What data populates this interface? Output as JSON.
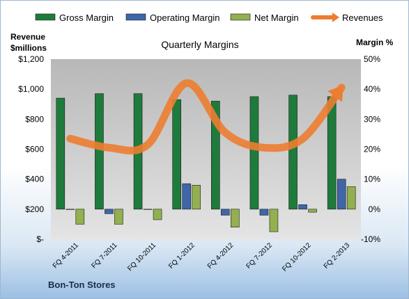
{
  "chart_data": {
    "type": "bar",
    "title": "Quarterly Margins",
    "company": "Bon-Ton Stores",
    "left_axis_title": [
      "Revenue",
      "$millions"
    ],
    "right_axis_title": "Margin %",
    "left_ticks": [
      "$-",
      "$200",
      "$400",
      "$600",
      "$800",
      "$1,000",
      "$1,200"
    ],
    "left_ylim": [
      0,
      1200
    ],
    "right_ticks": [
      "-10%",
      "0%",
      "10%",
      "20%",
      "30%",
      "40%",
      "50%"
    ],
    "right_ylim": [
      -10,
      50
    ],
    "grid": false,
    "legend_position": "top",
    "categories": [
      "FQ 4-2011",
      "FQ 7-2011",
      "FQ 10-2011",
      "FQ 1-2012",
      "FQ 4-2012",
      "FQ 7-2012",
      "FQ 10-2012",
      "FQ 2-2013"
    ],
    "series": [
      {
        "name": "Gross Margin",
        "kind": "bar",
        "axis": "right",
        "color": "#1e7b3c",
        "values": [
          37,
          38.5,
          38.5,
          36.5,
          36,
          37.5,
          38,
          37.5
        ]
      },
      {
        "name": "Operating Margin",
        "kind": "bar",
        "axis": "right",
        "color": "#3e66a8",
        "values": [
          0,
          -1.5,
          0,
          8.5,
          -2,
          -2,
          1.5,
          10
        ]
      },
      {
        "name": "Net Margin",
        "kind": "bar",
        "axis": "right",
        "color": "#92b050",
        "values": [
          -5,
          -5,
          -3.5,
          8,
          -6,
          -7.5,
          -1,
          7.5
        ]
      },
      {
        "name": "Revenues",
        "kind": "line",
        "axis": "left",
        "color": "#ed7d31",
        "values": [
          670,
          610,
          630,
          1040,
          710,
          610,
          670,
          1010
        ]
      }
    ]
  }
}
